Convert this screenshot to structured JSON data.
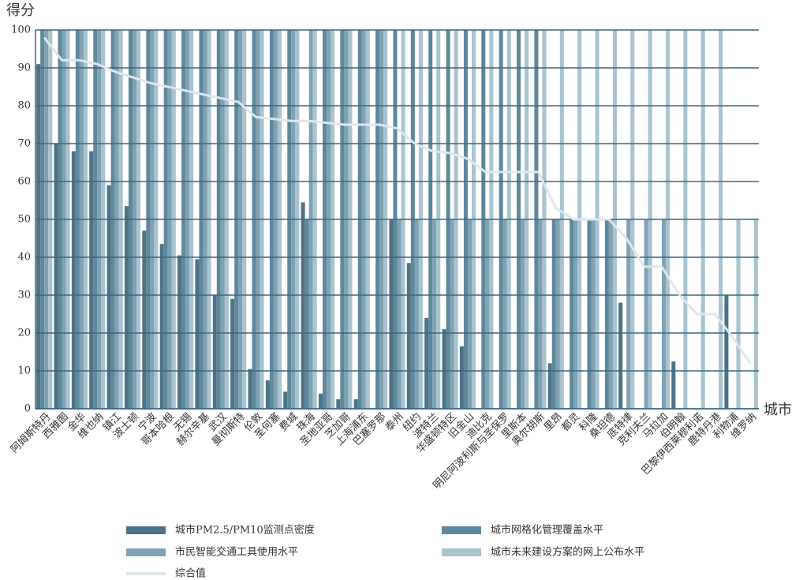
{
  "chart_data": {
    "type": "bar",
    "y_label": "得分",
    "x_label": "城市",
    "categories": [
      "阿姆斯特丹",
      "西雅图",
      "金华",
      "维也纳",
      "镇江",
      "波士顿",
      "宁波",
      "哥本哈根",
      "无锡",
      "赫尔辛基",
      "武汉",
      "曼彻斯特",
      "伦敦",
      "圣何塞",
      "费城",
      "珠海",
      "圣地亚哥",
      "芝加哥",
      "上海浦东",
      "巴塞罗那",
      "泰州",
      "纽约",
      "波特兰",
      "华盛顿特区",
      "旧金山",
      "迪比克",
      "明尼阿波利斯与圣保罗",
      "里斯本",
      "奥尔胡斯",
      "里昂",
      "都灵",
      "科隆",
      "桑坦德",
      "底特律",
      "克利夫兰",
      "马拉加",
      "伯明翰",
      "巴黎伊西莱穆利诺",
      "鹿特丹港",
      "利物浦",
      "维罗纳"
    ],
    "series": [
      {
        "name": "城市PM2.5/PM10监测点密度",
        "color": "#4d7387",
        "type": "bar",
        "values": [
          91,
          70,
          68,
          68,
          59,
          53.5,
          47,
          43.5,
          40.5,
          39.5,
          30,
          29,
          10.5,
          7.5,
          4.5,
          54.5,
          4,
          2.5,
          2.5,
          0,
          50,
          38.5,
          24,
          21,
          16.5,
          0,
          0,
          0,
          0,
          12,
          0,
          0,
          0,
          28,
          0,
          0,
          12.5,
          0,
          0,
          30,
          0
        ]
      },
      {
        "name": "城市网格化管理覆盖水平",
        "color": "#5e889c",
        "type": "bar",
        "values": [
          100,
          100,
          100,
          100,
          100,
          100,
          100,
          100,
          100,
          100,
          100,
          100,
          100,
          100,
          100,
          50,
          100,
          100,
          100,
          100,
          100,
          100,
          100,
          100,
          100,
          100,
          100,
          100,
          100,
          50,
          50,
          50,
          50,
          0,
          0,
          0,
          0,
          0,
          0,
          0,
          0
        ]
      },
      {
        "name": "市民智能交通工具使用水平",
        "color": "#7fa3b5",
        "type": "bar",
        "values": [
          100,
          100,
          100,
          100,
          100,
          100,
          100,
          100,
          100,
          100,
          100,
          100,
          100,
          100,
          100,
          100,
          100,
          100,
          100,
          100,
          50,
          50,
          50,
          50,
          50,
          50,
          50,
          50,
          50,
          50,
          50,
          50,
          50,
          50,
          50,
          50,
          0,
          0,
          0,
          0,
          0
        ]
      },
      {
        "name": "城市未来建设方案的网上公布水平",
        "color": "#a9c3cf",
        "type": "bar",
        "values": [
          100,
          100,
          100,
          100,
          100,
          100,
          100,
          100,
          100,
          100,
          100,
          100,
          100,
          100,
          100,
          100,
          100,
          100,
          100,
          100,
          100,
          100,
          100,
          100,
          100,
          100,
          100,
          100,
          100,
          100,
          100,
          100,
          100,
          100,
          100,
          100,
          100,
          100,
          100,
          50,
          50
        ]
      },
      {
        "name": "综合值",
        "color": "#dfe7eb",
        "type": "line",
        "values": [
          98,
          92,
          92,
          91,
          89,
          87.5,
          86,
          85,
          84,
          83,
          82,
          81,
          77,
          76.5,
          76,
          76,
          75.5,
          75,
          75,
          75,
          74,
          70,
          68,
          67.5,
          66,
          62.5,
          62.5,
          62.5,
          62.5,
          53,
          50,
          50,
          50,
          45,
          37.5,
          37.5,
          30,
          25,
          25,
          19,
          12
        ]
      }
    ],
    "ylim": [
      0,
      100
    ],
    "yticks": [
      0,
      10,
      20,
      30,
      40,
      50,
      60,
      70,
      80,
      90,
      100
    ],
    "grid": true
  }
}
